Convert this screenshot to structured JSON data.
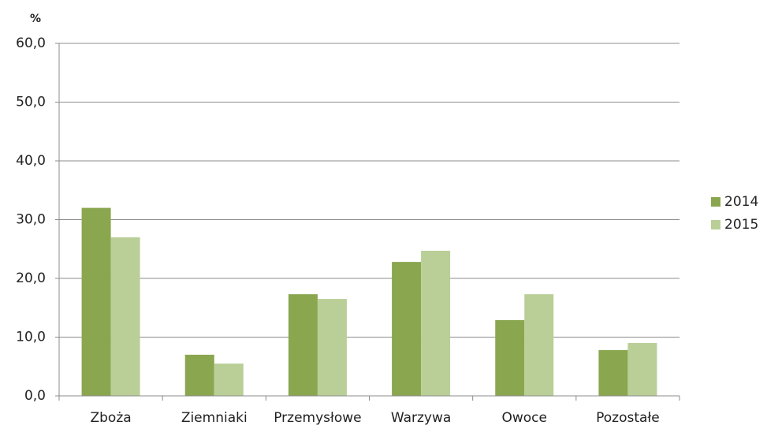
{
  "chart_data": {
    "type": "bar",
    "y_label": "%",
    "categories": [
      "Zboża",
      "Ziemniaki",
      "Przemysłowe",
      "Warzywa",
      "Owoce",
      "Pozostałe"
    ],
    "series": [
      {
        "name": "2014",
        "color": "#8aa64f",
        "values": [
          32.0,
          7.0,
          17.3,
          22.8,
          12.9,
          7.8
        ]
      },
      {
        "name": "2015",
        "color": "#b9cf97",
        "values": [
          27.0,
          5.5,
          16.5,
          24.7,
          17.3,
          9.0
        ]
      }
    ],
    "ylim": [
      0,
      60
    ],
    "yticks": [
      {
        "value": 0,
        "label": "0,0"
      },
      {
        "value": 10,
        "label": "10,0"
      },
      {
        "value": 20,
        "label": "20,0"
      },
      {
        "value": 30,
        "label": "30,0"
      },
      {
        "value": 40,
        "label": "40,0"
      },
      {
        "value": 50,
        "label": "50,0"
      },
      {
        "value": 60,
        "label": "60,0"
      }
    ],
    "grid": true,
    "legend": "right"
  }
}
